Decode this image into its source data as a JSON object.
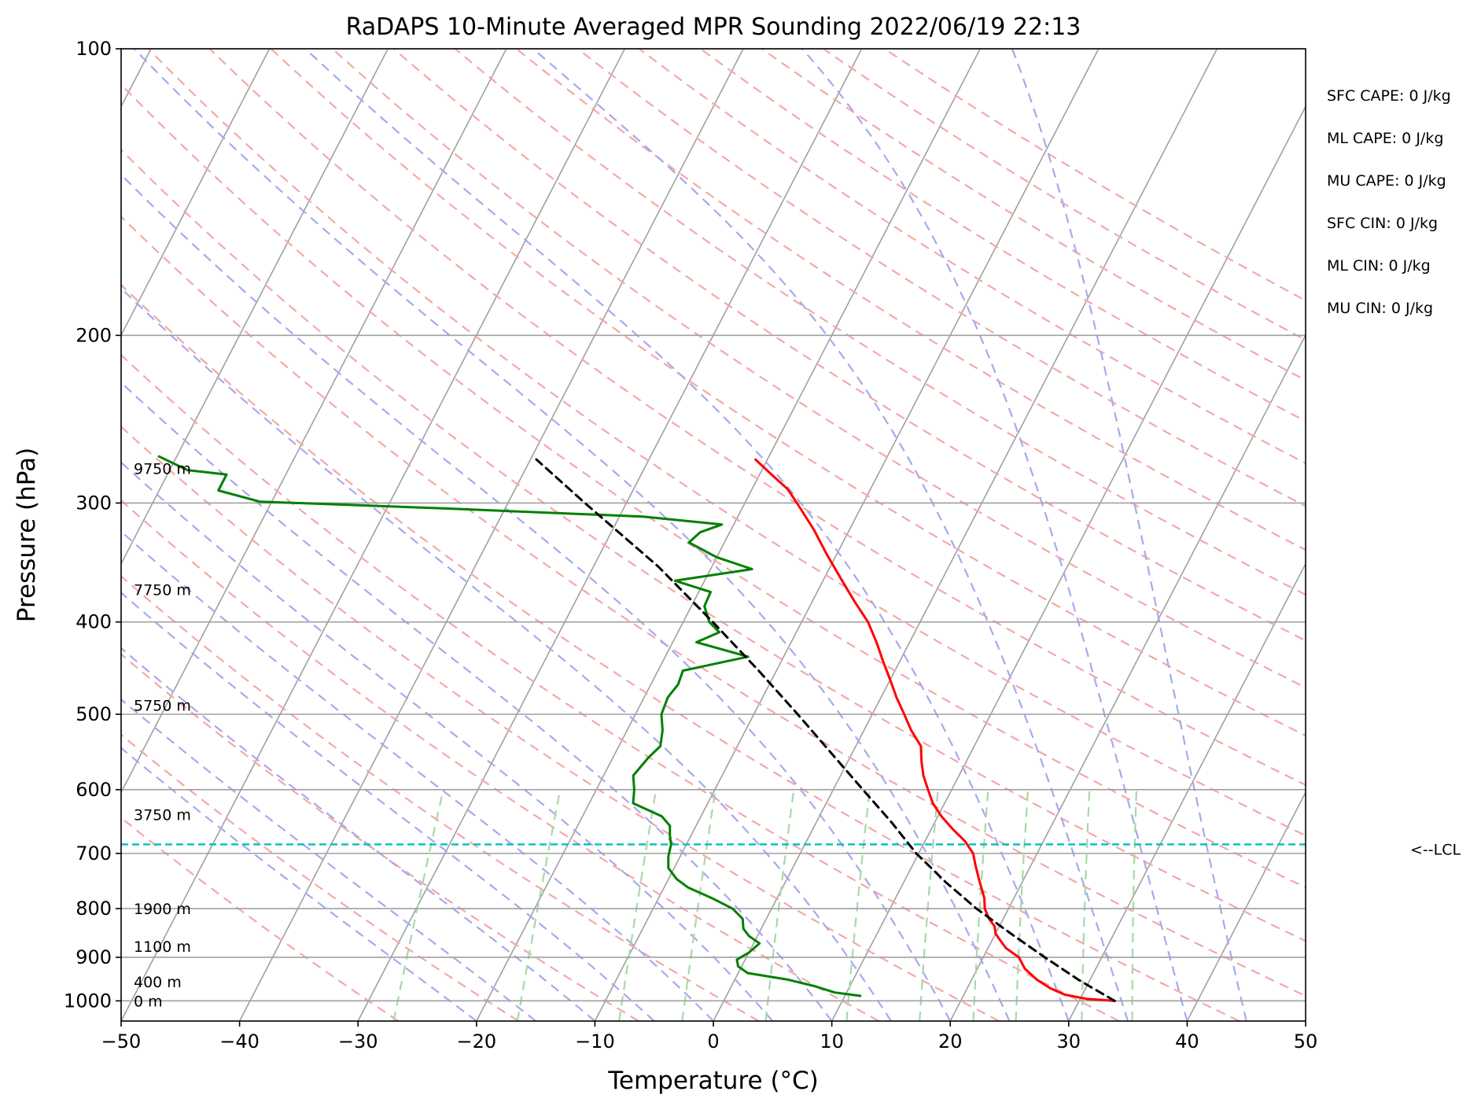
{
  "chart_data": {
    "type": "skew-t",
    "title": "RaDAPS 10-Minute Averaged MPR Sounding 2022/06/19 22:13",
    "xlabel": "Temperature (°C)",
    "ylabel": "Pressure (hPa)",
    "xlim": [
      -50,
      50
    ],
    "ylim": [
      1050,
      100
    ],
    "y_scale": "log",
    "x_ticks": [
      -50,
      -40,
      -30,
      -20,
      -10,
      0,
      10,
      20,
      30,
      40,
      50
    ],
    "x_tick_labels": [
      "−50",
      "−40",
      "−30",
      "−20",
      "−10",
      "0",
      "10",
      "20",
      "30",
      "40",
      "50"
    ],
    "y_ticks": [
      100,
      200,
      300,
      400,
      500,
      600,
      700,
      800,
      900,
      1000
    ],
    "y_tick_labels": [
      "100",
      "200",
      "300",
      "400",
      "500",
      "600",
      "700",
      "800",
      "900",
      "1000"
    ],
    "grid": true,
    "background_lines": {
      "isotherms_color": "#a0a0a0",
      "dry_adiabats_color": "#f4a8a8",
      "moist_adiabats_color": "#a8a8ee",
      "mixing_ratio_color": "#a8d8a8"
    },
    "temperature": {
      "color": "#ff0000",
      "points": [
        [
          1000,
          33.0
        ],
        [
          995,
          30.5
        ],
        [
          985,
          28.5
        ],
        [
          970,
          27.0
        ],
        [
          950,
          25.5
        ],
        [
          925,
          24.0
        ],
        [
          900,
          23.0
        ],
        [
          880,
          21.5
        ],
        [
          860,
          20.5
        ],
        [
          850,
          20.0
        ],
        [
          835,
          19.6
        ],
        [
          820,
          18.8
        ],
        [
          800,
          18.0
        ],
        [
          780,
          17.5
        ],
        [
          750,
          16.4
        ],
        [
          720,
          15.3
        ],
        [
          700,
          14.6
        ],
        [
          680,
          13.4
        ],
        [
          660,
          11.8
        ],
        [
          640,
          10.3
        ],
        [
          620,
          9.0
        ],
        [
          600,
          8.0
        ],
        [
          580,
          7.0
        ],
        [
          560,
          6.2
        ],
        [
          540,
          5.5
        ],
        [
          520,
          4.0
        ],
        [
          500,
          2.7
        ],
        [
          480,
          1.3
        ],
        [
          460,
          0.0
        ],
        [
          440,
          -1.4
        ],
        [
          420,
          -2.8
        ],
        [
          400,
          -4.4
        ],
        [
          380,
          -6.5
        ],
        [
          360,
          -8.6
        ],
        [
          340,
          -10.8
        ],
        [
          320,
          -13.0
        ],
        [
          300,
          -15.6
        ],
        [
          290,
          -17.0
        ],
        [
          280,
          -19.0
        ],
        [
          270,
          -21.0
        ]
      ]
    },
    "dewpoint": {
      "color": "#008000",
      "points": [
        [
          988,
          11.3
        ],
        [
          980,
          9.0
        ],
        [
          965,
          7.0
        ],
        [
          950,
          4.5
        ],
        [
          935,
          0.8
        ],
        [
          920,
          -0.3
        ],
        [
          905,
          -0.7
        ],
        [
          890,
          0.0
        ],
        [
          870,
          0.5
        ],
        [
          855,
          -0.7
        ],
        [
          840,
          -1.5
        ],
        [
          820,
          -2.0
        ],
        [
          800,
          -3.3
        ],
        [
          780,
          -5.5
        ],
        [
          760,
          -8.0
        ],
        [
          745,
          -9.3
        ],
        [
          725,
          -10.5
        ],
        [
          705,
          -11.0
        ],
        [
          685,
          -11.3
        ],
        [
          670,
          -11.8
        ],
        [
          655,
          -12.2
        ],
        [
          640,
          -13.3
        ],
        [
          620,
          -16.3
        ],
        [
          600,
          -16.8
        ],
        [
          580,
          -17.5
        ],
        [
          555,
          -17.0
        ],
        [
          540,
          -16.5
        ],
        [
          520,
          -17.0
        ],
        [
          500,
          -17.8
        ],
        [
          480,
          -18.0
        ],
        [
          465,
          -17.7
        ],
        [
          450,
          -17.9
        ],
        [
          435,
          -13.0
        ],
        [
          420,
          -18.0
        ],
        [
          410,
          -16.5
        ],
        [
          400,
          -17.8
        ],
        [
          385,
          -18.9
        ],
        [
          372,
          -19.0
        ],
        [
          362,
          -22.5
        ],
        [
          352,
          -16.5
        ],
        [
          342,
          -20.0
        ],
        [
          330,
          -23.0
        ],
        [
          322,
          -22.5
        ],
        [
          316,
          -21.0
        ],
        [
          310,
          -28.0
        ],
        [
          304,
          -45.0
        ],
        [
          299,
          -61.0
        ],
        [
          291,
          -65.0
        ],
        [
          285,
          -65.0
        ],
        [
          280,
          -65.0
        ],
        [
          277,
          -68.5
        ],
        [
          268,
          -71.5
        ]
      ]
    },
    "parcel_path": {
      "color": "#000000",
      "style": "dashed",
      "points": [
        [
          1000,
          33.0
        ],
        [
          950,
          29.0
        ],
        [
          900,
          25.2
        ],
        [
          850,
          21.3
        ],
        [
          800,
          17.3
        ],
        [
          750,
          13.5
        ],
        [
          700,
          9.8
        ],
        [
          685,
          8.8
        ],
        [
          650,
          6.4
        ],
        [
          600,
          2.5
        ],
        [
          550,
          -1.7
        ],
        [
          500,
          -6.3
        ],
        [
          450,
          -11.5
        ],
        [
          400,
          -17.5
        ],
        [
          350,
          -24.5
        ],
        [
          300,
          -33.5
        ],
        [
          270,
          -39.5
        ]
      ]
    },
    "lcl": {
      "pressure": 685,
      "label": "<--LCL",
      "color": "#00bfbf"
    },
    "height_labels": [
      {
        "pressure": 1000,
        "text": "0 m"
      },
      {
        "pressure": 955,
        "text": "400 m"
      },
      {
        "pressure": 876,
        "text": "1100 m"
      },
      {
        "pressure": 800,
        "text": "1900 m"
      },
      {
        "pressure": 637,
        "text": "3750 m"
      },
      {
        "pressure": 489,
        "text": "5750 m"
      },
      {
        "pressure": 370,
        "text": "7750 m"
      },
      {
        "pressure": 276,
        "text": "9750 m"
      }
    ],
    "annotations": [
      "SFC CAPE: 0 J/kg",
      "ML CAPE: 0 J/kg",
      "MU CAPE: 0 J/kg",
      "SFC CIN: 0 J/kg",
      "ML CIN: 0 J/kg",
      "MU CIN: 0 J/kg"
    ]
  }
}
